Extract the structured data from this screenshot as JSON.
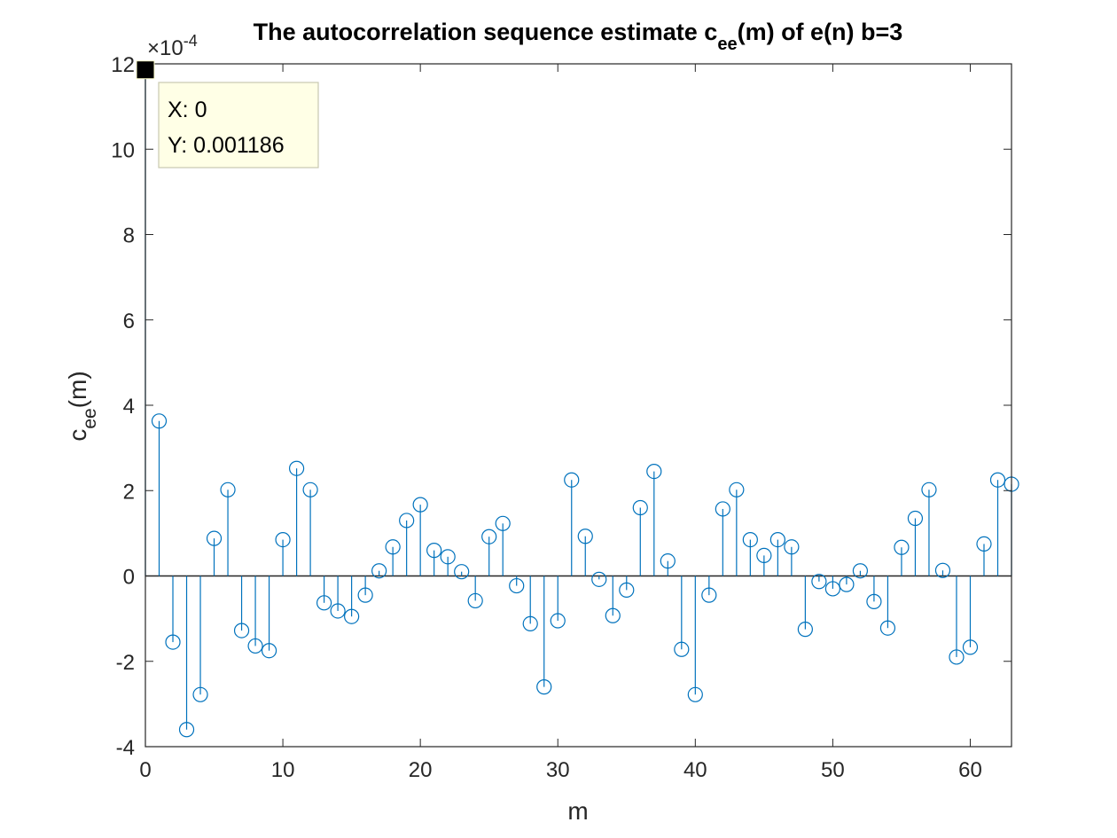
{
  "chart_data": {
    "type": "stem",
    "title": "The autocorrelation sequence estimate c",
    "title_sub": "ee",
    "title_tail": "(m) of e(n) b=3",
    "xlabel": "m",
    "ylabel_main": "c",
    "ylabel_sub": "ee",
    "ylabel_tail": "(m)",
    "exponent_label": "×10",
    "exponent_power": "-4",
    "xlim": [
      0,
      63
    ],
    "ylim": [
      -4,
      12
    ],
    "xticks": [
      "0",
      "10",
      "20",
      "30",
      "40",
      "50",
      "60"
    ],
    "yticks": [
      "-4",
      "-2",
      "0",
      "2",
      "4",
      "6",
      "8",
      "10",
      "12"
    ],
    "series": [
      {
        "color": "#0072BD",
        "marker": "circle",
        "x": [
          0,
          1,
          2,
          3,
          4,
          5,
          6,
          7,
          8,
          9,
          10,
          11,
          12,
          13,
          14,
          15,
          16,
          17,
          18,
          19,
          20,
          21,
          22,
          23,
          24,
          25,
          26,
          27,
          28,
          29,
          30,
          31,
          32,
          33,
          34,
          35,
          36,
          37,
          38,
          39,
          40,
          41,
          42,
          43,
          44,
          45,
          46,
          47,
          48,
          49,
          50,
          51,
          52,
          53,
          54,
          55,
          56,
          57,
          58,
          59,
          60,
          61,
          62,
          63
        ],
        "y": [
          11.86,
          3.63,
          -1.55,
          -3.6,
          -2.78,
          0.88,
          2.02,
          -1.28,
          -1.64,
          -1.75,
          0.85,
          2.52,
          2.02,
          -0.63,
          -0.82,
          -0.95,
          -0.45,
          0.12,
          0.68,
          1.3,
          1.67,
          0.6,
          0.45,
          0.1,
          -0.58,
          0.92,
          1.23,
          -0.23,
          -1.12,
          -2.6,
          -1.05,
          2.25,
          0.93,
          -0.08,
          -0.93,
          -0.33,
          1.6,
          2.45,
          0.35,
          -1.72,
          -2.78,
          -0.45,
          1.57,
          2.02,
          0.85,
          0.48,
          0.85,
          0.68,
          -1.25,
          -0.13,
          -0.3,
          -0.2,
          0.12,
          -0.6,
          -1.22,
          0.67,
          1.35,
          2.02,
          0.13,
          -1.9,
          -1.67,
          0.75,
          2.25,
          2.15
        ]
      }
    ],
    "datatip": {
      "x_text": "X: 0",
      "y_text": "Y: 0.001186",
      "x": 0,
      "y": 11.86
    },
    "grid": false,
    "legend": "none"
  }
}
